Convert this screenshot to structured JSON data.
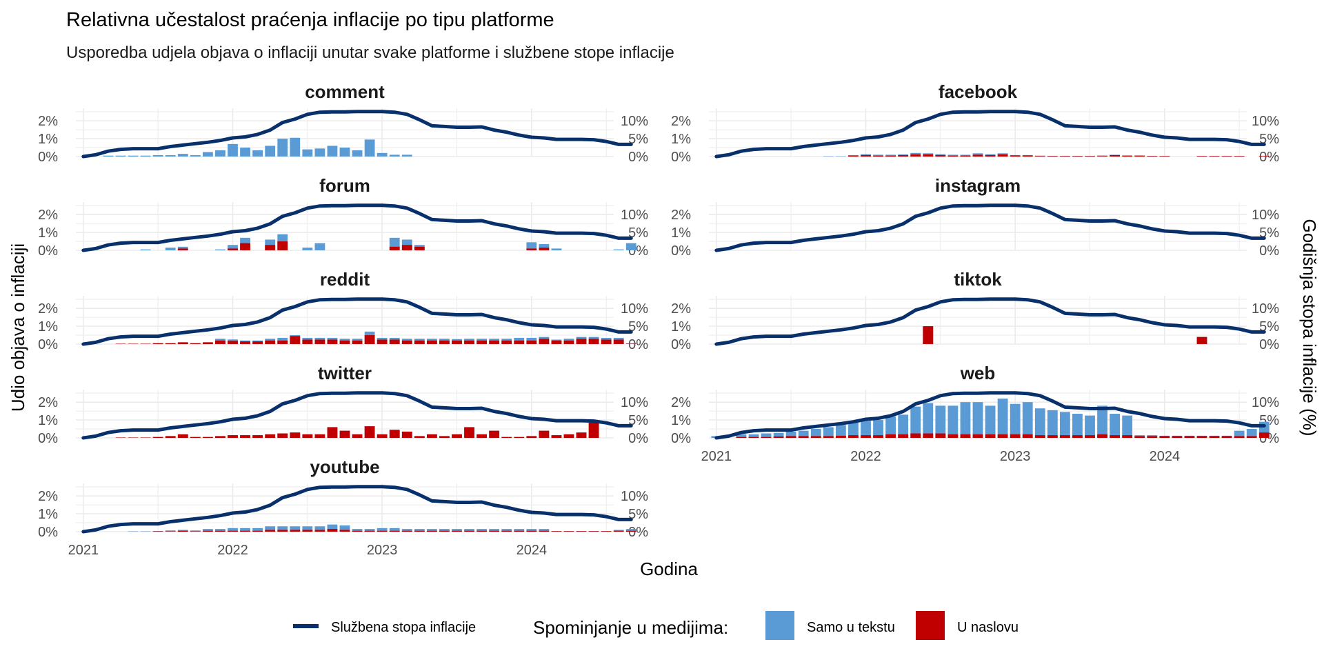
{
  "title": "Relativna učestalost praćenja inflacije po tipu platforme",
  "subtitle": "Usporedba udjela objava o inflaciji unutar svake platforme i službene stope inflacije",
  "x_axis_title": "Godina",
  "y_axis_title_left": "Udio objava o inflaciji",
  "y_axis_title_right": "Godišnja stopa inflacije (%)",
  "legend": {
    "line_label": "Službena stopa inflacije",
    "fill_title": "Spominjanje u medijima:",
    "fill_items": [
      "Samo u tekstu",
      "U naslovu"
    ]
  },
  "colors": {
    "line": "#08306B",
    "text_only": "#5B9BD5",
    "headline": "#C00000",
    "grid": "#EBEBEB"
  },
  "chart_data": {
    "type": "bar+line",
    "facet_layout": "2 columns, 5 rows",
    "x_label": "Godina",
    "x_tick_labels": [
      "2021",
      "2022",
      "2023",
      "2024"
    ],
    "x_ticks": [
      2021,
      2022,
      2023,
      2024
    ],
    "x_range": [
      2020.95,
      2024.55
    ],
    "month_start": "2021-01",
    "y_left_ticks": [
      "0%",
      "1%",
      "2%"
    ],
    "y_left_range": [
      0,
      2.7
    ],
    "y_right_ticks": [
      "0%",
      "5%",
      "10%"
    ],
    "y_right_range": [
      0,
      13.5
    ],
    "inflation_rate": [
      0.0,
      0.5,
      1.5,
      2.0,
      2.2,
      2.2,
      2.2,
      2.8,
      3.2,
      3.6,
      4.0,
      4.5,
      5.2,
      5.5,
      6.2,
      7.4,
      9.5,
      10.5,
      11.8,
      12.4,
      12.5,
      12.5,
      12.6,
      12.6,
      12.6,
      12.4,
      11.8,
      10.3,
      8.6,
      8.4,
      8.2,
      8.2,
      8.3,
      7.4,
      6.8,
      6.0,
      5.4,
      5.2,
      4.8,
      4.8,
      4.8,
      4.7,
      4.2,
      3.4,
      3.4
    ],
    "series": [
      {
        "name": "Samo u tekstu",
        "color": "#5B9BD5"
      },
      {
        "name": "U naslovu",
        "color": "#C00000"
      }
    ],
    "facets": [
      {
        "name": "comment",
        "text_only": [
          0,
          0,
          0.05,
          0.05,
          0.05,
          0.05,
          0.08,
          0.08,
          0.15,
          0.08,
          0.25,
          0.35,
          0.7,
          0.5,
          0.35,
          0.6,
          1.0,
          1.05,
          0.4,
          0.45,
          0.6,
          0.5,
          0.35,
          0.95,
          0.2,
          0.1,
          0.1,
          0,
          0,
          0,
          0,
          0,
          0,
          0,
          0,
          0,
          0,
          0,
          0,
          0,
          0,
          0,
          0,
          0,
          0
        ],
        "headline": [
          0,
          0,
          0,
          0,
          0,
          0,
          0,
          0,
          0,
          0,
          0,
          0,
          0,
          0,
          0,
          0,
          0,
          0,
          0,
          0,
          0,
          0,
          0,
          0,
          0,
          0,
          0,
          0,
          0,
          0,
          0,
          0,
          0,
          0,
          0,
          0,
          0,
          0,
          0,
          0,
          0,
          0,
          0,
          0,
          0
        ]
      },
      {
        "name": "facebook",
        "text_only": [
          0,
          0,
          0,
          0,
          0,
          0,
          0,
          0,
          0,
          0.02,
          0.02,
          0.03,
          0.05,
          0.05,
          0.05,
          0.04,
          0.08,
          0.06,
          0.05,
          0.05,
          0.05,
          0.08,
          0.05,
          0.06,
          0.02,
          0.02,
          0.02,
          0.01,
          0.01,
          0.01,
          0.01,
          0.03,
          0.02,
          0.01,
          0.01,
          0.01,
          0,
          0,
          0,
          0,
          0,
          0,
          0,
          0,
          0
        ],
        "headline": [
          0,
          0,
          0,
          0,
          0,
          0,
          0,
          0,
          0,
          0,
          0,
          0.05,
          0.08,
          0.05,
          0.05,
          0.08,
          0.12,
          0.12,
          0.08,
          0.05,
          0.05,
          0.1,
          0.08,
          0.12,
          0.06,
          0.06,
          0.03,
          0.03,
          0.03,
          0.03,
          0.03,
          0.03,
          0.08,
          0.05,
          0.05,
          0.03,
          0.03,
          0,
          0,
          0.03,
          0.03,
          0.03,
          0.03,
          0,
          0.03
        ]
      },
      {
        "name": "forum",
        "text_only": [
          0,
          0,
          0,
          0,
          0,
          0.05,
          0,
          0.15,
          0.1,
          0,
          0,
          0.05,
          0.2,
          0.3,
          0,
          0.3,
          0.4,
          0,
          0.15,
          0.4,
          0,
          0,
          0,
          0,
          0,
          0.5,
          0.3,
          0.1,
          0,
          0,
          0,
          0,
          0,
          0,
          0,
          0,
          0.35,
          0.2,
          0.1,
          0,
          0,
          0,
          0,
          0.05,
          0.4
        ],
        "headline": [
          0,
          0,
          0,
          0,
          0,
          0,
          0,
          0,
          0.1,
          0,
          0,
          0,
          0.1,
          0.4,
          0,
          0.3,
          0.5,
          0,
          0,
          0,
          0,
          0,
          0,
          0,
          0,
          0.2,
          0.3,
          0.2,
          0,
          0,
          0,
          0,
          0,
          0,
          0,
          0,
          0.1,
          0.15,
          0,
          0,
          0,
          0,
          0,
          0,
          0
        ]
      },
      {
        "name": "instagram",
        "text_only": [
          0,
          0,
          0,
          0,
          0,
          0,
          0,
          0,
          0,
          0,
          0,
          0,
          0,
          0,
          0,
          0,
          0,
          0,
          0,
          0,
          0,
          0,
          0,
          0,
          0,
          0,
          0,
          0,
          0,
          0,
          0,
          0,
          0,
          0,
          0,
          0,
          0,
          0,
          0,
          0,
          0,
          0,
          0,
          0,
          0
        ],
        "headline": [
          0,
          0,
          0,
          0,
          0,
          0,
          0,
          0,
          0,
          0,
          0,
          0,
          0,
          0,
          0,
          0,
          0,
          0,
          0,
          0,
          0,
          0,
          0,
          0,
          0,
          0,
          0,
          0,
          0,
          0,
          0,
          0,
          0,
          0,
          0,
          0,
          0,
          0,
          0,
          0,
          0,
          0,
          0,
          0,
          0
        ]
      },
      {
        "name": "reddit",
        "text_only": [
          0,
          0,
          0,
          0,
          0,
          0,
          0,
          0,
          0,
          0,
          0,
          0.1,
          0.08,
          0.05,
          0.05,
          0.1,
          0.15,
          0.05,
          0.1,
          0.1,
          0.1,
          0.1,
          0.1,
          0.2,
          0.1,
          0.1,
          0.1,
          0.1,
          0.1,
          0.1,
          0.08,
          0.1,
          0.1,
          0.1,
          0.1,
          0.15,
          0.15,
          0.1,
          0.05,
          0.1,
          0.1,
          0.1,
          0.1,
          0.1,
          0.02
        ],
        "headline": [
          0,
          0,
          0,
          0.02,
          0.02,
          0.02,
          0.05,
          0.05,
          0.1,
          0.05,
          0.1,
          0.2,
          0.18,
          0.15,
          0.15,
          0.2,
          0.2,
          0.45,
          0.25,
          0.25,
          0.25,
          0.2,
          0.2,
          0.5,
          0.25,
          0.25,
          0.2,
          0.2,
          0.2,
          0.2,
          0.2,
          0.2,
          0.2,
          0.2,
          0.2,
          0.2,
          0.2,
          0.3,
          0.2,
          0.2,
          0.3,
          0.3,
          0.25,
          0.25,
          0.02
        ]
      },
      {
        "name": "tiktok",
        "text_only": [
          0,
          0,
          0,
          0,
          0,
          0,
          0,
          0,
          0,
          0,
          0,
          0,
          0,
          0,
          0,
          0,
          0,
          0,
          0,
          0,
          0,
          0,
          0,
          0,
          0,
          0,
          0,
          0,
          0,
          0,
          0,
          0,
          0,
          0,
          0,
          0,
          0,
          0,
          0,
          0,
          0,
          0,
          0,
          0,
          0
        ],
        "headline": [
          0,
          0,
          0,
          0,
          0,
          0,
          0,
          0,
          0,
          0,
          0,
          0,
          0,
          0,
          0,
          0,
          0,
          1.0,
          0,
          0,
          0,
          0,
          0,
          0,
          0,
          0,
          0,
          0,
          0,
          0,
          0,
          0,
          0,
          0,
          0,
          0,
          0,
          0,
          0,
          0.4,
          0,
          0,
          0,
          0,
          0
        ]
      },
      {
        "name": "twitter",
        "text_only": [
          0,
          0,
          0,
          0,
          0,
          0,
          0,
          0,
          0,
          0,
          0,
          0,
          0,
          0,
          0,
          0,
          0,
          0,
          0,
          0,
          0,
          0,
          0,
          0,
          0,
          0,
          0,
          0,
          0,
          0,
          0,
          0,
          0,
          0,
          0,
          0,
          0,
          0,
          0,
          0,
          0,
          0,
          0,
          0,
          0
        ],
        "headline": [
          0,
          0,
          0,
          0.02,
          0.02,
          0.02,
          0.05,
          0.1,
          0.2,
          0.05,
          0.05,
          0.1,
          0.15,
          0.15,
          0.15,
          0.2,
          0.25,
          0.3,
          0.2,
          0.2,
          0.6,
          0.4,
          0.2,
          0.65,
          0.2,
          0.45,
          0.35,
          0.1,
          0.2,
          0.1,
          0.2,
          0.6,
          0.2,
          0.4,
          0.05,
          0.05,
          0.1,
          0.4,
          0.15,
          0.2,
          0.3,
          0.85,
          0,
          0,
          0
        ]
      },
      {
        "name": "web",
        "text_only": [
          0.1,
          0,
          0.15,
          0.15,
          0.2,
          0.2,
          0.25,
          0.3,
          0.4,
          0.5,
          0.6,
          0.7,
          0.8,
          0.85,
          1.0,
          1.1,
          1.5,
          1.7,
          1.55,
          1.6,
          1.8,
          1.8,
          1.6,
          2.0,
          1.7,
          1.8,
          1.5,
          1.4,
          1.3,
          1.2,
          1.1,
          1.6,
          1.2,
          1.1,
          0.05,
          0.05,
          0.02,
          0.02,
          0.02,
          0.02,
          0.02,
          0.02,
          0.3,
          0.4,
          0.6
        ],
        "headline": [
          0,
          0,
          0.05,
          0.05,
          0.05,
          0.08,
          0.1,
          0.1,
          0.1,
          0.1,
          0.12,
          0.15,
          0.15,
          0.15,
          0.2,
          0.2,
          0.25,
          0.25,
          0.25,
          0.2,
          0.2,
          0.2,
          0.2,
          0.2,
          0.2,
          0.2,
          0.15,
          0.15,
          0.15,
          0.15,
          0.15,
          0.2,
          0.15,
          0.15,
          0.1,
          0.1,
          0.1,
          0.1,
          0.1,
          0.1,
          0.1,
          0.1,
          0.1,
          0.1,
          0.3
        ]
      },
      {
        "name": "youtube",
        "text_only": [
          0,
          0,
          0,
          0,
          0.02,
          0.02,
          0.02,
          0.05,
          0.05,
          0.05,
          0.1,
          0.1,
          0.15,
          0.15,
          0.15,
          0.2,
          0.2,
          0.2,
          0.2,
          0.2,
          0.25,
          0.25,
          0.1,
          0.1,
          0.15,
          0.15,
          0.1,
          0.1,
          0.1,
          0.1,
          0.1,
          0.1,
          0.1,
          0.1,
          0.1,
          0.1,
          0.1,
          0.1,
          0,
          0,
          0,
          0,
          0,
          0.05,
          0.1
        ],
        "headline": [
          0,
          0,
          0,
          0,
          0,
          0,
          0.02,
          0.02,
          0.05,
          0.02,
          0.05,
          0.05,
          0.05,
          0.05,
          0.05,
          0.1,
          0.1,
          0.1,
          0.1,
          0.1,
          0.15,
          0.1,
          0.05,
          0.05,
          0.05,
          0.05,
          0.05,
          0.05,
          0.05,
          0.05,
          0.05,
          0.05,
          0.05,
          0.05,
          0.05,
          0.05,
          0.05,
          0.05,
          0.03,
          0.03,
          0.03,
          0.03,
          0.03,
          0.05,
          0.05
        ]
      }
    ]
  }
}
